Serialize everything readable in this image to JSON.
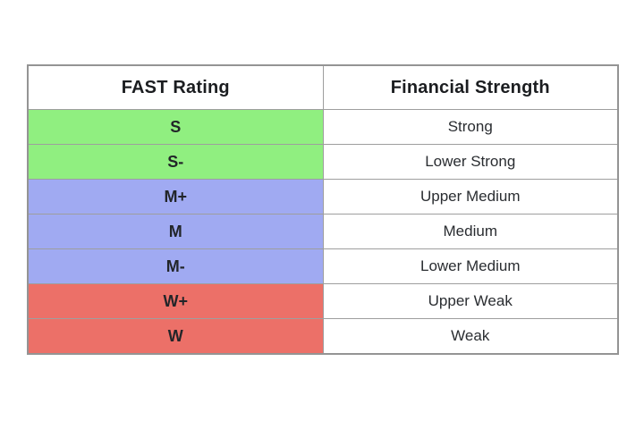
{
  "page": {
    "background": "#ffffff"
  },
  "table": {
    "headers": [
      {
        "label": "FAST Rating"
      },
      {
        "label": "Financial Strength"
      }
    ],
    "rows": [
      {
        "rating": "S",
        "strength": "Strong",
        "color": "#90ef80"
      },
      {
        "rating": "S-",
        "strength": "Lower Strong",
        "color": "#90ef80"
      },
      {
        "rating": "M+",
        "strength": "Upper Medium",
        "color": "#a0aaf2"
      },
      {
        "rating": "M",
        "strength": "Medium",
        "color": "#a0aaf2"
      },
      {
        "rating": "M-",
        "strength": "Lower Medium",
        "color": "#a0aaf2"
      },
      {
        "rating": "W+",
        "strength": "Upper Weak",
        "color": "#ec7068"
      },
      {
        "rating": "W",
        "strength": "Weak",
        "color": "#ec7068"
      }
    ],
    "colors": {
      "strong_green": "#90ef80",
      "medium_blue": "#a0aaf2",
      "weak_red": "#ec7068",
      "border": "#9e9e9e",
      "header_text": "#1b1d20",
      "cell_text": "#2a2d31"
    }
  }
}
